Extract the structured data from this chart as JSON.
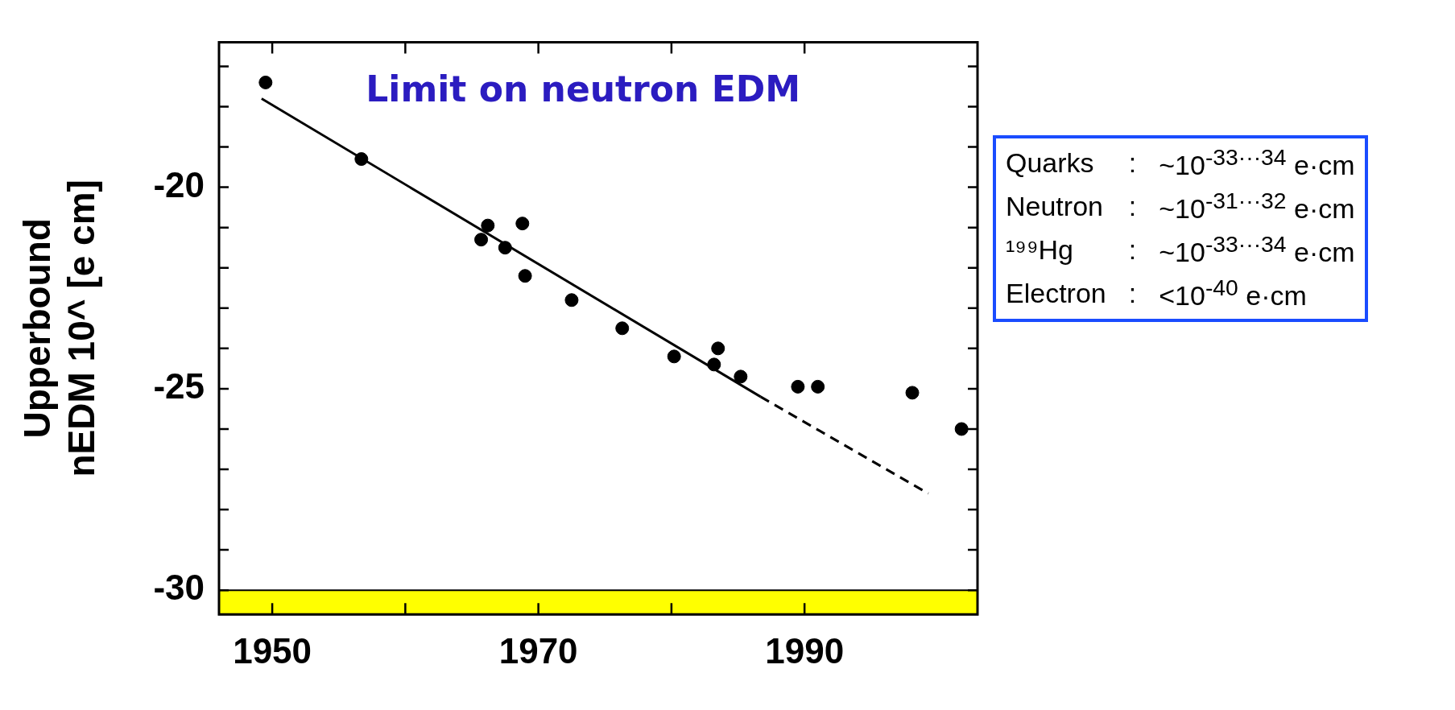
{
  "chart_data": {
    "type": "scatter",
    "title": "Limit on neutron EDM",
    "ylabel": "Upperbound\nnEDM 10^ [e cm]",
    "xlim": [
      1946,
      2003
    ],
    "ylim": [
      -30.6,
      -16.4
    ],
    "xticks": [
      1950,
      {
        "value": 1960,
        "label": null
      },
      1970,
      {
        "value": 1980,
        "label": null
      },
      1990
    ],
    "yticks": [
      -30,
      {
        "value": -29,
        "label": null
      },
      {
        "value": -28,
        "label": null
      },
      {
        "value": -27,
        "label": null
      },
      {
        "value": -26,
        "label": null
      },
      -25,
      {
        "value": -24,
        "label": null
      },
      {
        "value": -23,
        "label": null
      },
      {
        "value": -22,
        "label": null
      },
      {
        "value": -21,
        "label": null
      },
      -20,
      {
        "value": -19,
        "label": null
      },
      {
        "value": -18,
        "label": null
      },
      {
        "value": -17,
        "label": null
      }
    ],
    "grid": false,
    "legend": false,
    "series": [
      {
        "color": "#000000",
        "marker": "circle",
        "x": [
          1949.5,
          1956.7,
          1965.7,
          1966.2,
          1967.5,
          1968.8,
          1969.0,
          1972.5,
          1976.3,
          1980.2,
          1983.2,
          1983.5,
          1985.2,
          1989.5,
          1991.0,
          1998.1
        ],
        "values": [
          -17.4,
          -19.3,
          -21.3,
          -20.95,
          -21.5,
          -20.9,
          -22.2,
          -22.8,
          -23.5,
          -24.2,
          -24.4,
          -24.0,
          -24.7,
          -24.95,
          -24.95,
          -25.1
        ]
      },
      {
        "color": "#000000",
        "marker": "circle",
        "x": [
          2001.8
        ],
        "values": [
          -26.0
        ]
      },
      {
        "type": "line",
        "color": "#000000",
        "marker": "none",
        "line_style": "solid",
        "x": [
          1949.2,
          1986.7
        ],
        "values": [
          -17.8,
          -25.2
        ]
      },
      {
        "type": "line",
        "color": "#000000",
        "marker": "none",
        "line_style": "dashed",
        "x": [
          1986.7,
          1999.3
        ],
        "values": [
          -25.2,
          -27.6
        ]
      }
    ],
    "bands": [
      {
        "axis": "y",
        "from": -30.6,
        "to": -30,
        "color": "#ffff00"
      }
    ],
    "annotations": [
      "Quarks : ~10$^{-33···34}$ e·cm",
      "Neutron : ~10$^{-31···32}$ e·cm",
      "¹⁹⁹Hg : ~10$^{-33···34}$ e·cm",
      "Electron : <10$^{-40}$ e·cm"
    ]
  }
}
